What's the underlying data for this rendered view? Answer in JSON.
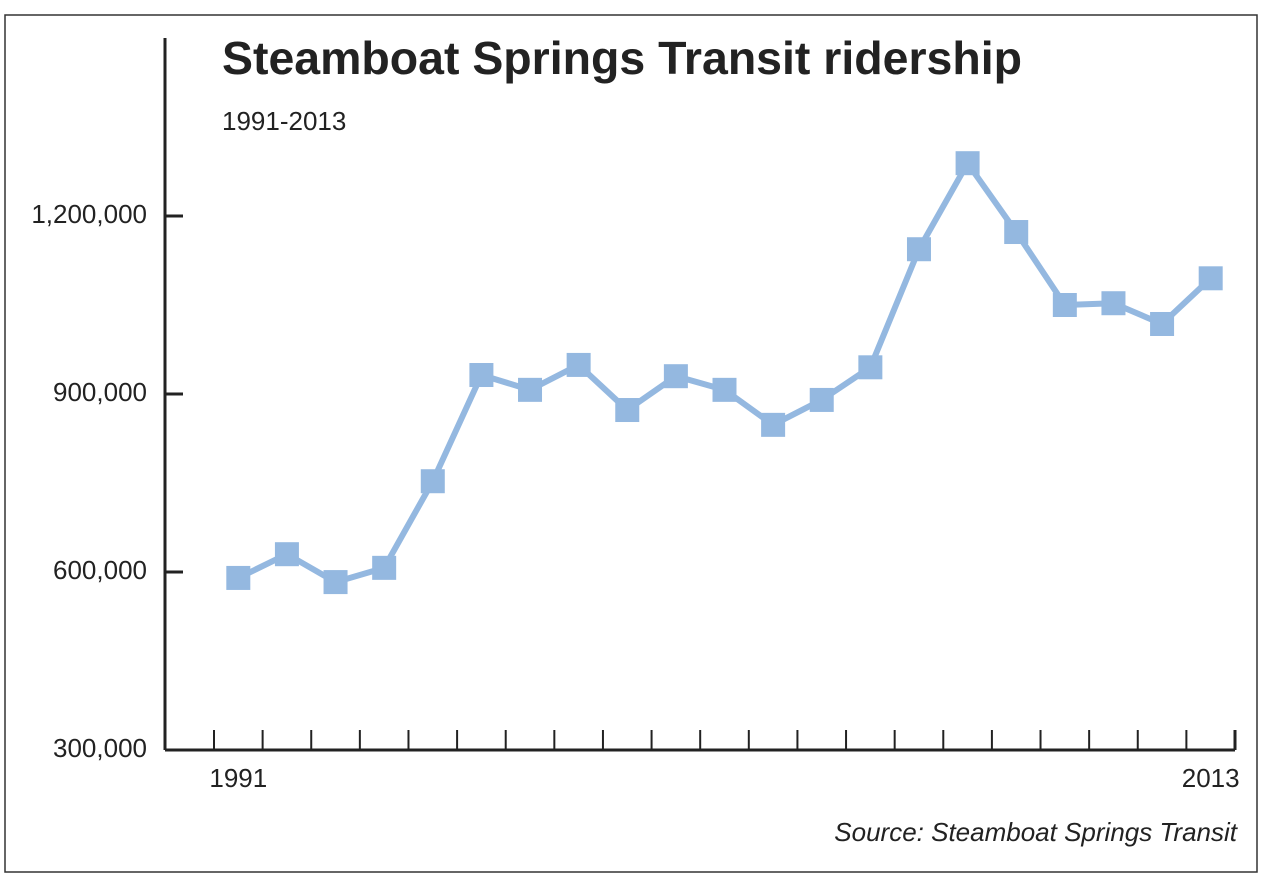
{
  "chart_data": {
    "type": "line",
    "title": "Steamboat Springs Transit ridership",
    "subtitle": "1991-2013",
    "source": "Source: Steamboat Springs Transit",
    "categories": [
      "1991",
      null,
      null,
      null,
      null,
      null,
      null,
      null,
      null,
      null,
      null,
      null,
      null,
      null,
      null,
      null,
      null,
      null,
      null,
      null,
      "2013"
    ],
    "series": [
      {
        "name": "Ridership",
        "color": "#94b8e0",
        "values": [
          590000,
          630000,
          583000,
          607000,
          753000,
          932000,
          907000,
          949000,
          873000,
          930000,
          907000,
          848000,
          890000,
          945000,
          1144000,
          1289000,
          1173000,
          1050000,
          1053000,
          1018000,
          1095000
        ]
      }
    ],
    "ylim": [
      300000,
      1500000
    ],
    "yticks": [
      {
        "value": 300000,
        "label": "300,000"
      },
      {
        "value": 600000,
        "label": "600,000"
      },
      {
        "value": 900000,
        "label": "900,000"
      },
      {
        "value": 1200000,
        "label": "1,200,000"
      }
    ],
    "grid": false
  }
}
